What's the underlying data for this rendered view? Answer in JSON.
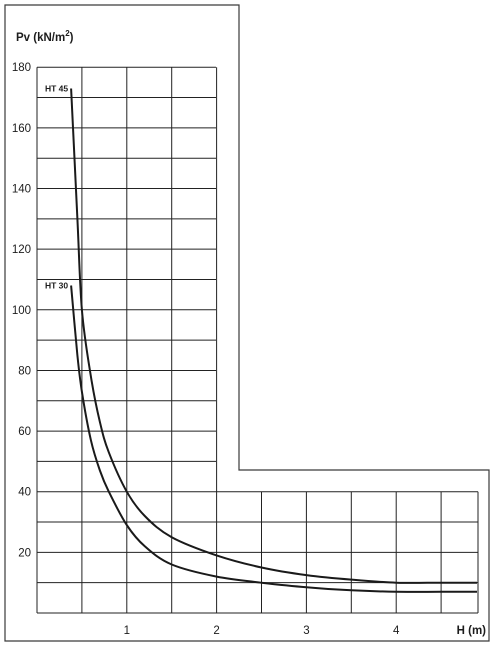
{
  "chart_data": {
    "type": "line",
    "ylabel": "Pv (kN/m",
    "ylabel_sup": "2",
    "ylabel_close": ")",
    "xlabel": "H (m)",
    "xlim": [
      0,
      5
    ],
    "ylim": [
      0,
      180
    ],
    "x_ticks": [
      1,
      2,
      3,
      4
    ],
    "y_ticks": [
      20,
      40,
      60,
      80,
      100,
      120,
      140,
      160,
      180
    ],
    "x_grid_step": 0.5,
    "y_grid_step": 10,
    "grid": true,
    "legend": "none (series labelled at curve start)",
    "series": [
      {
        "name": "HT 45",
        "x": [
          0.38,
          0.45,
          0.5,
          0.6,
          0.7,
          0.8,
          1.0,
          1.2,
          1.5,
          2.0,
          2.5,
          3.0,
          3.5,
          4.0,
          4.5,
          4.9
        ],
        "y": [
          173,
          130,
          100,
          78,
          63,
          53,
          40,
          32,
          25,
          19,
          15,
          12.5,
          11,
          10,
          10,
          10
        ]
      },
      {
        "name": "HT 30",
        "x": [
          0.38,
          0.45,
          0.5,
          0.6,
          0.7,
          0.8,
          1.0,
          1.2,
          1.5,
          2.0,
          2.5,
          3.0,
          3.5,
          4.0,
          4.5,
          4.9
        ],
        "y": [
          108,
          85,
          73,
          57,
          47,
          40,
          29,
          22,
          16,
          12,
          10,
          8.5,
          7.5,
          7,
          7,
          7
        ]
      }
    ]
  }
}
